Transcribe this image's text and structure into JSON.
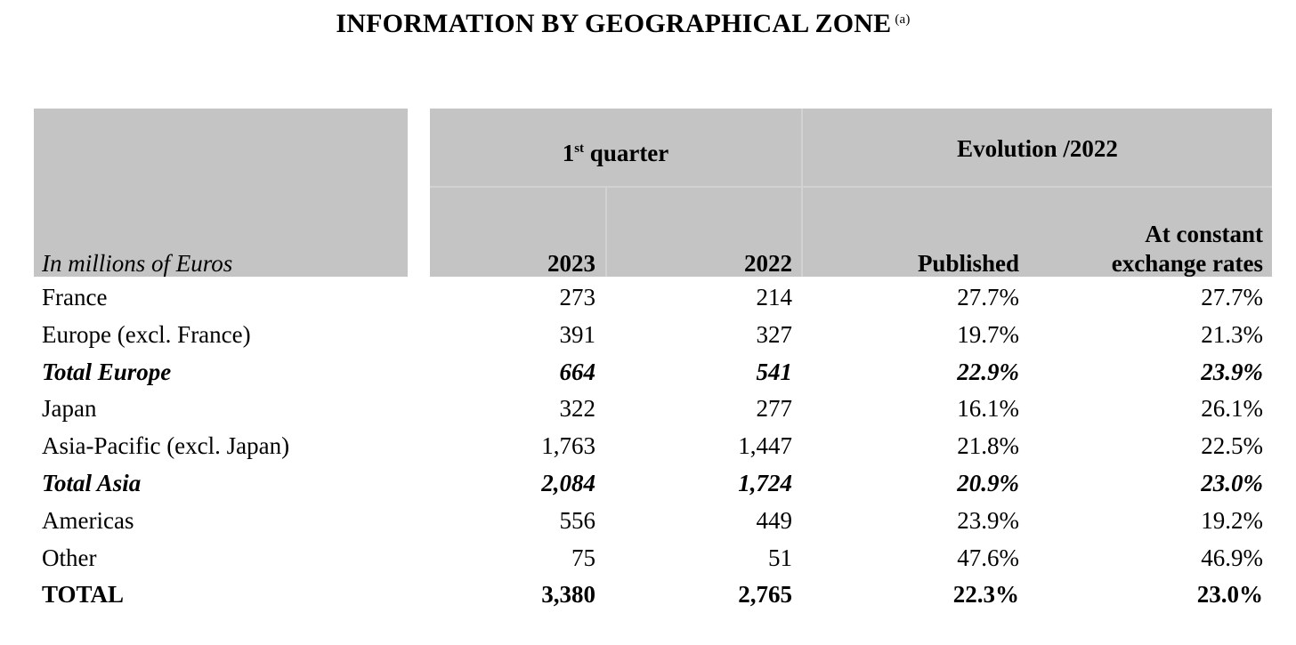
{
  "title": "INFORMATION BY GEOGRAPHICAL ZONE",
  "title_note": "(a)",
  "header": {
    "unit_label": "In millions of Euros",
    "group1_main": "1",
    "group1_sup": "st",
    "group1_rest": " quarter",
    "group2": "Evolution /2022",
    "col_2023": "2023",
    "col_2022": "2022",
    "col_published": "Published",
    "col_constant_line1": "At constant",
    "col_constant_line2": "exchange rates"
  },
  "rows": [
    {
      "label": "France",
      "v2023": "273",
      "v2022": "214",
      "published": "27.7%",
      "constant": "27.7%",
      "style": "normal"
    },
    {
      "label": "Europe (excl. France)",
      "v2023": "391",
      "v2022": "327",
      "published": "19.7%",
      "constant": "21.3%",
      "style": "normal"
    },
    {
      "label": "Total Europe",
      "v2023": "664",
      "v2022": "541",
      "published": "22.9%",
      "constant": "23.9%",
      "style": "bold-italic"
    },
    {
      "label": "Japan",
      "v2023": "322",
      "v2022": "277",
      "published": "16.1%",
      "constant": "26.1%",
      "style": "normal"
    },
    {
      "label": "Asia-Pacific (excl. Japan)",
      "v2023": "1,763",
      "v2022": "1,447",
      "published": "21.8%",
      "constant": "22.5%",
      "style": "normal"
    },
    {
      "label": "Total Asia",
      "v2023": "2,084",
      "v2022": "1,724",
      "published": "20.9%",
      "constant": "23.0%",
      "style": "bold-italic"
    },
    {
      "label": "Americas",
      "v2023": "556",
      "v2022": "449",
      "published": "23.9%",
      "constant": "19.2%",
      "style": "normal"
    },
    {
      "label": "Other",
      "v2023": "75",
      "v2022": "51",
      "published": "47.6%",
      "constant": "46.9%",
      "style": "normal"
    },
    {
      "label": "TOTAL",
      "v2023": "3,380",
      "v2022": "2,765",
      "published": "22.3%",
      "constant": "23.0%",
      "style": "bold"
    }
  ]
}
